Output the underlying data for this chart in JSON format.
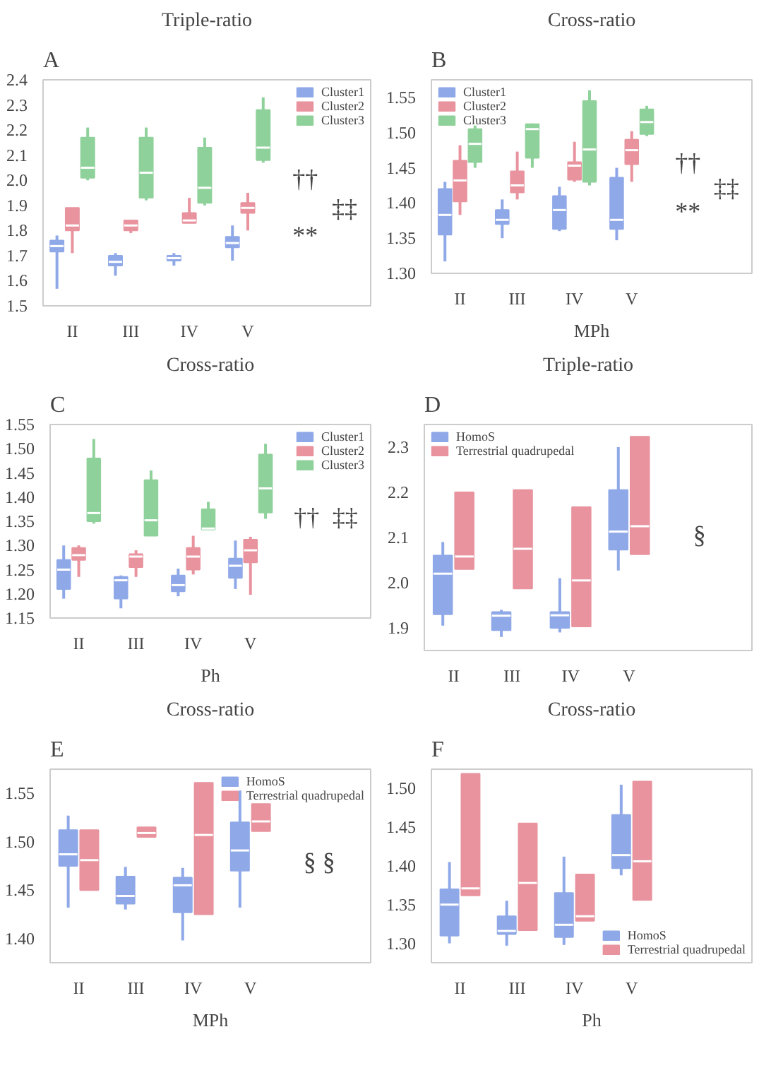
{
  "chart_data": [
    {
      "type": "box",
      "title": "Triple-ratio",
      "categories": [
        "II",
        "III",
        "IV",
        "V"
      ],
      "ylim": [
        1.5,
        2.4
      ],
      "yticks": [
        1.5,
        1.6,
        1.7,
        1.8,
        1.9,
        {
          "value": 2.0,
          "label": "2.0"
        },
        2.1,
        2.2,
        2.3,
        2.4
      ],
      "legend": "top right",
      "grid": false,
      "annotations": [
        "A",
        "††",
        "**",
        "‡‡"
      ],
      "series": [
        {
          "name": "Cluster1",
          "color": "#8fa8e8",
          "boxes": [
            {
              "low": 1.568,
              "q1": 1.716,
              "median": 1.738,
              "q3": 1.76,
              "high": 1.78
            },
            {
              "low": 1.62,
              "q1": 1.66,
              "median": 1.675,
              "q3": 1.7,
              "high": 1.71
            },
            {
              "low": 1.66,
              "q1": 1.68,
              "median": 1.69,
              "q3": 1.7,
              "high": 1.71
            },
            {
              "low": 1.68,
              "q1": 1.733,
              "median": 1.75,
              "q3": 1.775,
              "high": 1.82
            }
          ]
        },
        {
          "name": "Cluster2",
          "color": "#e8939e",
          "boxes": [
            {
              "low": 1.71,
              "q1": 1.8,
              "median": 1.82,
              "q3": 1.89,
              "high": 1.89
            },
            {
              "low": 1.79,
              "q1": 1.8,
              "median": 1.82,
              "q3": 1.84,
              "high": 1.84
            },
            {
              "low": 1.83,
              "q1": 1.83,
              "median": 1.84,
              "q3": 1.87,
              "high": 1.93
            },
            {
              "low": 1.8,
              "q1": 1.87,
              "median": 1.89,
              "q3": 1.91,
              "high": 1.95
            }
          ]
        },
        {
          "name": "Cluster3",
          "color": "#8fd19a",
          "boxes": [
            {
              "low": 2.0,
              "q1": 2.01,
              "median": 2.05,
              "q3": 2.17,
              "high": 2.21
            },
            {
              "low": 1.92,
              "q1": 1.93,
              "median": 2.03,
              "q3": 2.17,
              "high": 2.21
            },
            {
              "low": 1.9,
              "q1": 1.91,
              "median": 1.97,
              "q3": 2.13,
              "high": 2.17
            },
            {
              "low": 2.07,
              "q1": 2.08,
              "median": 2.13,
              "q3": 2.28,
              "high": 2.33
            }
          ]
        }
      ]
    },
    {
      "type": "box",
      "title": "Cross-ratio",
      "xlabel": "MPh",
      "categories": [
        "II",
        "III",
        "IV",
        "V"
      ],
      "ylim": [
        1.3,
        1.575
      ],
      "yticks": [
        {
          "value": 1.3,
          "label": "1.30"
        },
        1.35,
        {
          "value": 1.4,
          "label": "1.40"
        },
        1.45,
        {
          "value": 1.5,
          "label": "1.50"
        },
        1.55
      ],
      "legend": "top left",
      "grid": false,
      "annotations": [
        "B",
        "††",
        "**",
        "‡‡"
      ],
      "series": [
        {
          "name": "Cluster1",
          "color": "#8fa8e8",
          "boxes": [
            {
              "low": 1.317,
              "q1": 1.355,
              "median": 1.383,
              "q3": 1.42,
              "high": 1.43
            },
            {
              "low": 1.35,
              "q1": 1.37,
              "median": 1.376,
              "q3": 1.39,
              "high": 1.405
            },
            {
              "low": 1.36,
              "q1": 1.363,
              "median": 1.39,
              "q3": 1.41,
              "high": 1.423
            },
            {
              "low": 1.347,
              "q1": 1.363,
              "median": 1.376,
              "q3": 1.436,
              "high": 1.45
            }
          ]
        },
        {
          "name": "Cluster2",
          "color": "#e8939e",
          "boxes": [
            {
              "low": 1.383,
              "q1": 1.402,
              "median": 1.432,
              "q3": 1.46,
              "high": 1.482
            },
            {
              "low": 1.405,
              "q1": 1.415,
              "median": 1.425,
              "q3": 1.445,
              "high": 1.473
            },
            {
              "low": 1.43,
              "q1": 1.433,
              "median": 1.453,
              "q3": 1.458,
              "high": 1.487
            },
            {
              "low": 1.43,
              "q1": 1.455,
              "median": 1.475,
              "q3": 1.49,
              "high": 1.502
            }
          ]
        },
        {
          "name": "Cluster3",
          "color": "#8fd19a",
          "boxes": [
            {
              "low": 1.45,
              "q1": 1.458,
              "median": 1.484,
              "q3": 1.505,
              "high": 1.51
            },
            {
              "low": 1.45,
              "q1": 1.464,
              "median": 1.505,
              "q3": 1.512,
              "high": 1.513
            },
            {
              "low": 1.425,
              "q1": 1.43,
              "median": 1.476,
              "q3": 1.545,
              "high": 1.56
            },
            {
              "low": 1.495,
              "q1": 1.498,
              "median": 1.515,
              "q3": 1.533,
              "high": 1.538
            }
          ]
        }
      ]
    },
    {
      "type": "box",
      "title": "Cross-ratio",
      "xlabel": "Ph",
      "categories": [
        "II",
        "III",
        "IV",
        "V"
      ],
      "ylim": [
        1.15,
        1.55
      ],
      "yticks": [
        1.15,
        {
          "value": 1.2,
          "label": "1.20"
        },
        1.25,
        {
          "value": 1.3,
          "label": "1.30"
        },
        1.35,
        {
          "value": 1.4,
          "label": "1.40"
        },
        1.45,
        {
          "value": 1.5,
          "label": "1.50"
        },
        1.55
      ],
      "legend": "top right",
      "grid": false,
      "annotations": [
        "C",
        "††",
        "‡‡"
      ],
      "series": [
        {
          "name": "Cluster1",
          "color": "#8fa8e8",
          "boxes": [
            {
              "low": 1.19,
              "q1": 1.21,
              "median": 1.25,
              "q3": 1.27,
              "high": 1.3
            },
            {
              "low": 1.17,
              "q1": 1.19,
              "median": 1.228,
              "q3": 1.235,
              "high": 1.238
            },
            {
              "low": 1.195,
              "q1": 1.205,
              "median": 1.218,
              "q3": 1.238,
              "high": 1.252
            },
            {
              "low": 1.21,
              "q1": 1.233,
              "median": 1.258,
              "q3": 1.273,
              "high": 1.31
            }
          ]
        },
        {
          "name": "Cluster2",
          "color": "#e8939e",
          "boxes": [
            {
              "low": 1.235,
              "q1": 1.27,
              "median": 1.28,
              "q3": 1.295,
              "high": 1.3
            },
            {
              "low": 1.235,
              "q1": 1.255,
              "median": 1.277,
              "q3": 1.282,
              "high": 1.29
            },
            {
              "low": 1.24,
              "q1": 1.25,
              "median": 1.277,
              "q3": 1.295,
              "high": 1.32
            },
            {
              "low": 1.198,
              "q1": 1.265,
              "median": 1.29,
              "q3": 1.312,
              "high": 1.318
            }
          ]
        },
        {
          "name": "Cluster3",
          "color": "#8fd19a",
          "boxes": [
            {
              "low": 1.345,
              "q1": 1.35,
              "median": 1.367,
              "q3": 1.48,
              "high": 1.52
            },
            {
              "low": 1.32,
              "q1": 1.32,
              "median": 1.352,
              "q3": 1.435,
              "high": 1.455
            },
            {
              "low": 1.333,
              "q1": 1.333,
              "median": 1.335,
              "q3": 1.375,
              "high": 1.39
            },
            {
              "low": 1.355,
              "q1": 1.368,
              "median": 1.418,
              "q3": 1.488,
              "high": 1.51
            }
          ]
        }
      ]
    },
    {
      "type": "box",
      "title": "Triple-ratio",
      "categories": [
        "II",
        "III",
        "IV",
        "V"
      ],
      "ylim": [
        1.85,
        2.35
      ],
      "yticks": [
        1.9,
        {
          "value": 2.0,
          "label": "2.0"
        },
        2.1,
        2.2,
        2.3
      ],
      "legend": "top left",
      "grid": false,
      "annotations": [
        "D",
        "§"
      ],
      "series": [
        {
          "name": "HomoS",
          "color": "#8fa8e8",
          "boxes": [
            {
              "low": 1.905,
              "q1": 1.93,
              "median": 2.02,
              "q3": 2.06,
              "high": 2.09
            },
            {
              "low": 1.88,
              "q1": 1.895,
              "median": 1.927,
              "q3": 1.935,
              "high": 1.94
            },
            {
              "low": 1.89,
              "q1": 1.9,
              "median": 1.928,
              "q3": 1.935,
              "high": 2.01
            },
            {
              "low": 2.027,
              "q1": 2.073,
              "median": 2.113,
              "q3": 2.205,
              "high": 2.3
            }
          ]
        },
        {
          "name": "Terrestrial quadrupedal",
          "color": "#e8939e",
          "boxes": [
            {
              "low": 2.03,
              "q1": 2.03,
              "median": 2.058,
              "q3": 2.2,
              "high": 2.2
            },
            {
              "low": 1.987,
              "q1": 1.987,
              "median": 2.075,
              "q3": 2.205,
              "high": 2.205
            },
            {
              "low": 1.903,
              "q1": 1.903,
              "median": 2.005,
              "q3": 2.167,
              "high": 2.167
            },
            {
              "low": 2.063,
              "q1": 2.063,
              "median": 2.125,
              "q3": 2.323,
              "high": 2.323
            }
          ]
        }
      ]
    },
    {
      "type": "box",
      "title": "Cross-ratio",
      "xlabel": "MPh",
      "categories": [
        "II",
        "III",
        "IV",
        "V"
      ],
      "ylim": [
        1.375,
        1.575
      ],
      "yticks": [
        {
          "value": 1.4,
          "label": "1.40"
        },
        1.45,
        {
          "value": 1.5,
          "label": "1.50"
        },
        1.55
      ],
      "legend": "top right",
      "grid": false,
      "annotations": [
        "E",
        "§ §"
      ],
      "series": [
        {
          "name": "HomoS",
          "color": "#8fa8e8",
          "boxes": [
            {
              "low": 1.432,
              "q1": 1.475,
              "median": 1.487,
              "q3": 1.512,
              "high": 1.527
            },
            {
              "low": 1.43,
              "q1": 1.436,
              "median": 1.444,
              "q3": 1.464,
              "high": 1.474
            },
            {
              "low": 1.398,
              "q1": 1.427,
              "median": 1.455,
              "q3": 1.463,
              "high": 1.473
            },
            {
              "low": 1.432,
              "q1": 1.47,
              "median": 1.491,
              "q3": 1.52,
              "high": 1.553
            }
          ]
        },
        {
          "name": "Terrestrial quadrupedal",
          "color": "#e8939e",
          "boxes": [
            {
              "low": 1.45,
              "q1": 1.45,
              "median": 1.481,
              "q3": 1.512,
              "high": 1.512
            },
            {
              "low": 1.505,
              "q1": 1.505,
              "median": 1.509,
              "q3": 1.515,
              "high": 1.515
            },
            {
              "low": 1.425,
              "q1": 1.425,
              "median": 1.507,
              "q3": 1.561,
              "high": 1.561
            },
            {
              "low": 1.511,
              "q1": 1.511,
              "median": 1.521,
              "q3": 1.539,
              "high": 1.539
            }
          ]
        }
      ]
    },
    {
      "type": "box",
      "title": "Cross-ratio",
      "xlabel": "Ph",
      "categories": [
        "II",
        "III",
        "IV",
        "V"
      ],
      "ylim": [
        1.275,
        1.525
      ],
      "yticks": [
        {
          "value": 1.3,
          "label": "1.30"
        },
        1.35,
        {
          "value": 1.4,
          "label": "1.40"
        },
        1.45,
        {
          "value": 1.5,
          "label": "1.50"
        }
      ],
      "legend": "bottom right",
      "grid": false,
      "annotations": [
        "F"
      ],
      "series": [
        {
          "name": "HomoS",
          "color": "#8fa8e8",
          "boxes": [
            {
              "low": 1.3,
              "q1": 1.31,
              "median": 1.35,
              "q3": 1.37,
              "high": 1.405
            },
            {
              "low": 1.297,
              "q1": 1.312,
              "median": 1.316,
              "q3": 1.335,
              "high": 1.355
            },
            {
              "low": 1.298,
              "q1": 1.308,
              "median": 1.324,
              "q3": 1.365,
              "high": 1.412
            },
            {
              "low": 1.388,
              "q1": 1.397,
              "median": 1.414,
              "q3": 1.466,
              "high": 1.505
            }
          ]
        },
        {
          "name": "Terrestrial quadrupedal",
          "color": "#e8939e",
          "boxes": [
            {
              "low": 1.362,
              "q1": 1.362,
              "median": 1.371,
              "q3": 1.519,
              "high": 1.519
            },
            {
              "low": 1.317,
              "q1": 1.317,
              "median": 1.378,
              "q3": 1.455,
              "high": 1.455
            },
            {
              "low": 1.329,
              "q1": 1.329,
              "median": 1.335,
              "q3": 1.389,
              "high": 1.389
            },
            {
              "low": 1.356,
              "q1": 1.356,
              "median": 1.406,
              "q3": 1.509,
              "high": 1.509
            }
          ]
        }
      ]
    }
  ]
}
